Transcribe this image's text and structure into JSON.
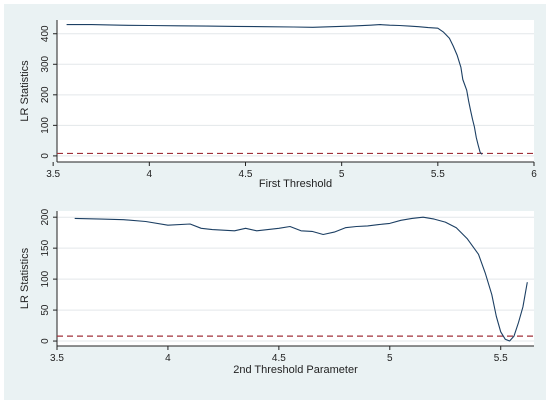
{
  "colors": {
    "background": "#eaf2f3",
    "plot_background": "#ffffff",
    "line": "#1c3f63",
    "reference_line": "#a0313a",
    "grid": "#e3e7ea",
    "axis": "#222222"
  },
  "chart_data": [
    {
      "type": "line",
      "xlabel": "First Threshold",
      "ylabel": "LR Statistics",
      "xlim": [
        3.52,
        6.0
      ],
      "ylim": [
        -20,
        445
      ],
      "xticks": [
        3.5,
        4,
        4.5,
        5,
        5.5,
        6
      ],
      "xtick_labels": [
        "3.5",
        "4",
        "4.5",
        "5",
        "5.5",
        "6"
      ],
      "yticks": [
        0,
        100,
        200,
        300,
        400
      ],
      "ytick_labels": [
        "0",
        "100",
        "200",
        "300",
        "400"
      ],
      "grid": "horizontal",
      "reference_line": {
        "y": 8,
        "style": "dashed"
      },
      "series": [
        {
          "x": [
            3.57,
            3.7,
            3.85,
            4.0,
            4.15,
            4.3,
            4.45,
            4.6,
            4.75,
            4.85,
            4.95,
            5.05,
            5.15,
            5.2,
            5.25,
            5.3,
            5.35,
            5.4,
            5.45,
            5.5,
            5.53,
            5.56,
            5.58,
            5.6,
            5.62,
            5.63,
            5.65,
            5.66,
            5.67,
            5.68,
            5.69,
            5.7,
            5.71,
            5.72,
            5.73
          ],
          "y": [
            430,
            430,
            428,
            427,
            426,
            425,
            424,
            423,
            422,
            421,
            423,
            425,
            428,
            430,
            428,
            427,
            425,
            423,
            420,
            418,
            405,
            385,
            360,
            330,
            290,
            250,
            215,
            180,
            150,
            120,
            95,
            60,
            35,
            12,
            5
          ]
        }
      ]
    },
    {
      "type": "line",
      "xlabel": "2nd Threshold Parameter",
      "ylabel": "LR Statistics",
      "xlim": [
        3.5,
        5.65
      ],
      "ylim": [
        -8,
        210
      ],
      "xticks": [
        3.5,
        4,
        4.5,
        5,
        5.5
      ],
      "xtick_labels": [
        "3.5",
        "4",
        "4.5",
        "5",
        "5.5"
      ],
      "yticks": [
        0,
        50,
        100,
        150,
        200
      ],
      "ytick_labels": [
        "0",
        "50",
        "100",
        "150",
        "200"
      ],
      "grid": "horizontal",
      "reference_line": {
        "y": 8,
        "style": "dashed"
      },
      "series": [
        {
          "x": [
            3.58,
            3.7,
            3.8,
            3.9,
            4.0,
            4.1,
            4.15,
            4.2,
            4.3,
            4.35,
            4.4,
            4.45,
            4.5,
            4.55,
            4.6,
            4.65,
            4.7,
            4.75,
            4.8,
            4.85,
            4.9,
            4.95,
            5.0,
            5.05,
            5.1,
            5.15,
            5.2,
            5.25,
            5.3,
            5.35,
            5.4,
            5.43,
            5.46,
            5.48,
            5.5,
            5.52,
            5.54,
            5.56,
            5.58,
            5.6,
            5.62
          ],
          "y": [
            198,
            197,
            196,
            193,
            187,
            189,
            182,
            180,
            178,
            182,
            178,
            180,
            182,
            185,
            178,
            177,
            172,
            176,
            183,
            185,
            186,
            188,
            190,
            195,
            198,
            200,
            197,
            192,
            183,
            165,
            140,
            110,
            75,
            40,
            15,
            3,
            0,
            8,
            30,
            55,
            95
          ]
        }
      ]
    }
  ]
}
